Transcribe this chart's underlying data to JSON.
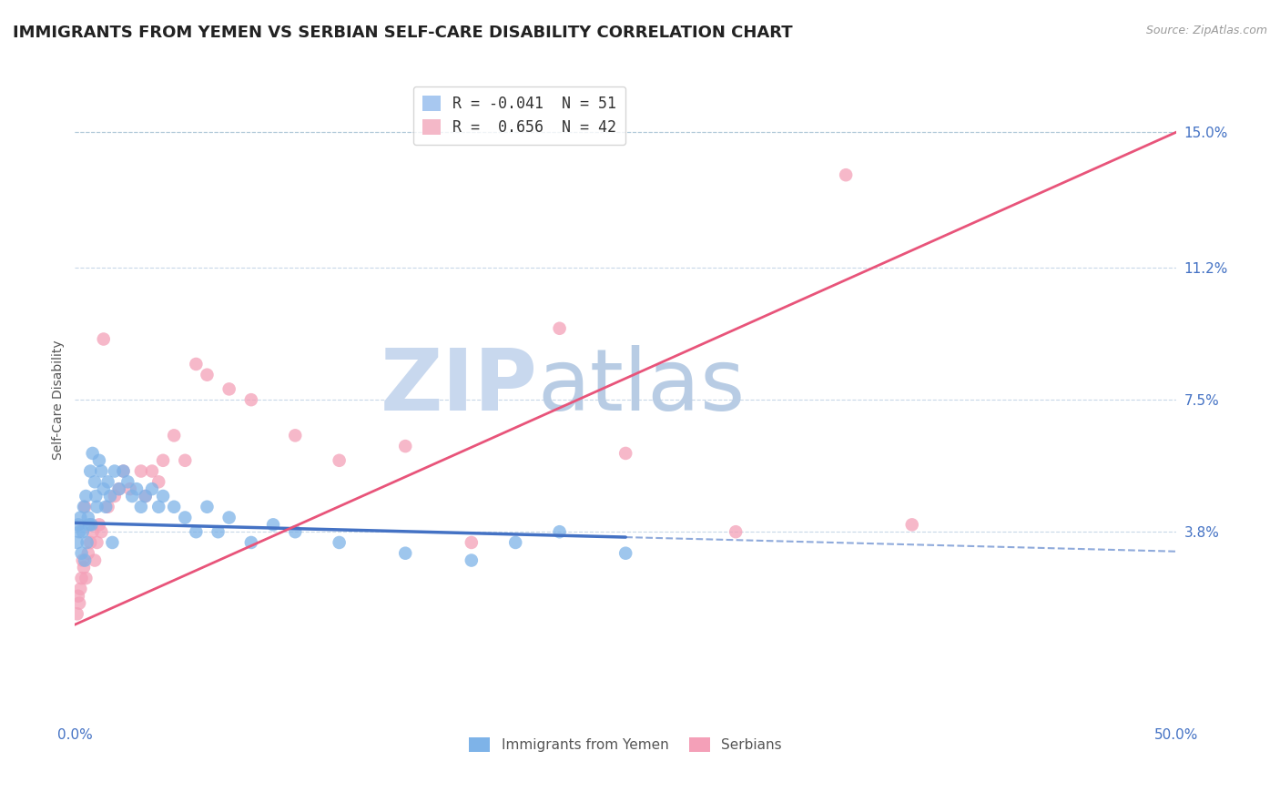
{
  "title": "IMMIGRANTS FROM YEMEN VS SERBIAN SELF-CARE DISABILITY CORRELATION CHART",
  "source": "Source: ZipAtlas.com",
  "ylabel": "Self-Care Disability",
  "xlim": [
    0.0,
    50.0
  ],
  "ylim": [
    -1.5,
    16.5
  ],
  "yticks": [
    3.8,
    7.5,
    11.2,
    15.0
  ],
  "ytick_labels": [
    "3.8%",
    "7.5%",
    "11.2%",
    "15.0%"
  ],
  "legend_items": [
    {
      "label": "R = -0.041  N = 51",
      "color": "#a8c8f0"
    },
    {
      "label": "R =  0.656  N = 42",
      "color": "#f4b8c8"
    }
  ],
  "legend_bottom": [
    "Immigrants from Yemen",
    "Serbians"
  ],
  "watermark_zip": "ZIP",
  "watermark_atlas": "atlas",
  "blue_scatter_x": [
    0.1,
    0.15,
    0.2,
    0.25,
    0.3,
    0.35,
    0.4,
    0.45,
    0.5,
    0.55,
    0.6,
    0.7,
    0.75,
    0.8,
    0.9,
    0.95,
    1.0,
    1.1,
    1.2,
    1.3,
    1.4,
    1.5,
    1.6,
    1.8,
    2.0,
    2.2,
    2.4,
    2.6,
    2.8,
    3.0,
    3.2,
    3.5,
    3.8,
    4.0,
    4.5,
    5.0,
    5.5,
    6.0,
    6.5,
    7.0,
    8.0,
    9.0,
    10.0,
    12.0,
    15.0,
    18.0,
    20.0,
    22.0,
    25.0,
    0.65,
    1.7
  ],
  "blue_scatter_y": [
    3.5,
    4.0,
    3.8,
    4.2,
    3.2,
    3.8,
    4.5,
    3.0,
    4.8,
    3.5,
    4.2,
    5.5,
    4.0,
    6.0,
    5.2,
    4.8,
    4.5,
    5.8,
    5.5,
    5.0,
    4.5,
    5.2,
    4.8,
    5.5,
    5.0,
    5.5,
    5.2,
    4.8,
    5.0,
    4.5,
    4.8,
    5.0,
    4.5,
    4.8,
    4.5,
    4.2,
    3.8,
    4.5,
    3.8,
    4.2,
    3.5,
    4.0,
    3.8,
    3.5,
    3.2,
    3.0,
    3.5,
    3.8,
    3.2,
    4.0,
    3.5
  ],
  "pink_scatter_x": [
    0.1,
    0.15,
    0.2,
    0.25,
    0.3,
    0.35,
    0.4,
    0.5,
    0.6,
    0.7,
    0.8,
    0.9,
    1.0,
    1.1,
    1.2,
    1.5,
    1.8,
    2.0,
    2.2,
    2.5,
    3.0,
    3.2,
    3.5,
    3.8,
    4.0,
    4.5,
    5.0,
    5.5,
    6.0,
    7.0,
    8.0,
    10.0,
    12.0,
    15.0,
    18.0,
    22.0,
    25.0,
    30.0,
    35.0,
    38.0,
    0.45,
    1.3
  ],
  "pink_scatter_y": [
    1.5,
    2.0,
    1.8,
    2.2,
    2.5,
    3.0,
    2.8,
    2.5,
    3.2,
    3.5,
    3.8,
    3.0,
    3.5,
    4.0,
    3.8,
    4.5,
    4.8,
    5.0,
    5.5,
    5.0,
    5.5,
    4.8,
    5.5,
    5.2,
    5.8,
    6.5,
    5.8,
    8.5,
    8.2,
    7.8,
    7.5,
    6.5,
    5.8,
    6.2,
    3.5,
    9.5,
    6.0,
    3.8,
    13.8,
    4.0,
    4.5,
    9.2
  ],
  "blue_line_x0": 0.0,
  "blue_line_x_solid_end": 25.0,
  "blue_line_x_end": 50.0,
  "blue_line_y0": 4.05,
  "blue_line_y_solid_end": 3.65,
  "blue_line_y_end": 3.25,
  "pink_line_x0": 0.0,
  "pink_line_x_end": 50.0,
  "pink_line_y0": 1.2,
  "pink_line_y_end": 15.0,
  "blue_line_color": "#4472c4",
  "pink_line_color": "#e8547a",
  "blue_scatter_color": "#7eb3e8",
  "pink_scatter_color": "#f4a0b8",
  "grid_color": "#c8d8e8",
  "grid_top_color": "#b0c8d8",
  "background_color": "#ffffff",
  "title_color": "#222222",
  "axis_label_color": "#4472c4",
  "watermark_zip_color": "#c8d8ee",
  "watermark_atlas_color": "#b8cce4",
  "title_fontsize": 13,
  "axis_fontsize": 10,
  "tick_fontsize": 11,
  "scatter_size": 110
}
